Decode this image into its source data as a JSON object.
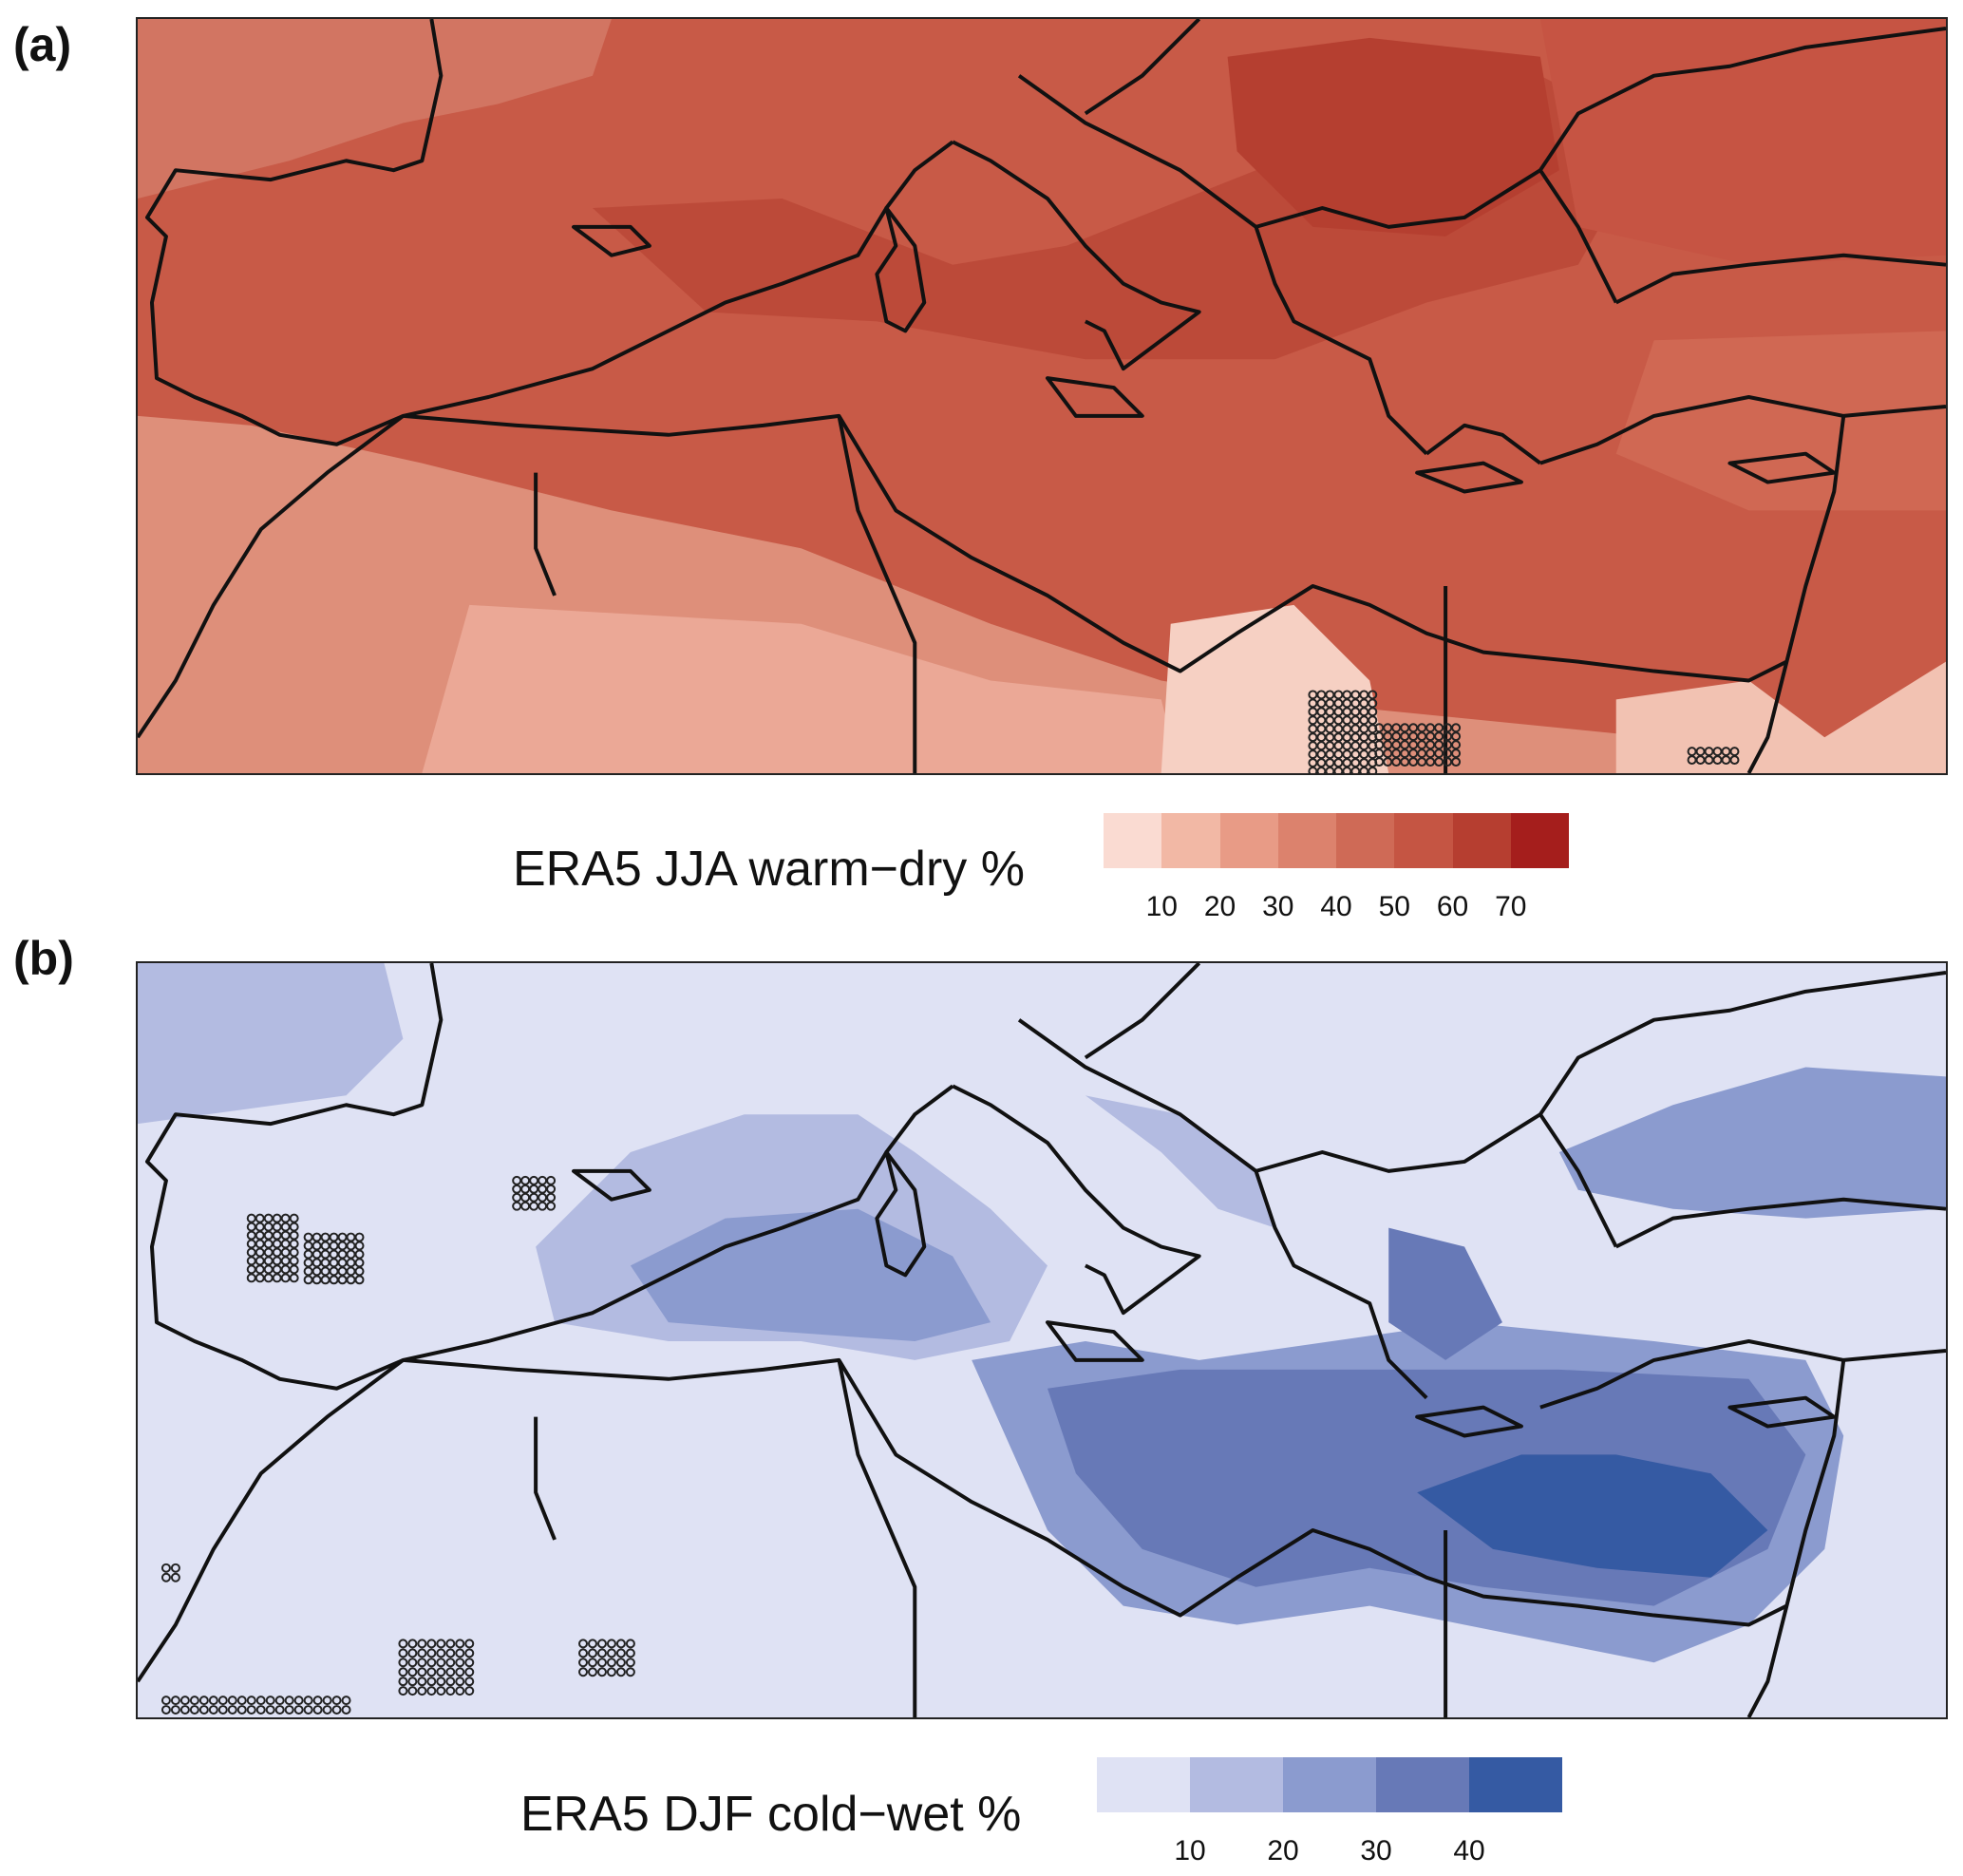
{
  "panels": [
    {
      "id": "a",
      "label": "(a)",
      "legend_title": "ERA5 JJA warm−dry %",
      "colors": [
        "#fadbd2",
        "#f2b8a5",
        "#e89b86",
        "#dc826d",
        "#cf6a56",
        "#c55543",
        "#b63e30",
        "#a51e1c"
      ],
      "ticks": [
        "10",
        "20",
        "30",
        "40",
        "50",
        "60",
        "70"
      ],
      "background_color": "#c85a47",
      "field_level": "50-60"
    },
    {
      "id": "b",
      "label": "(b)",
      "legend_title": "ERA5 DJF cold−wet %",
      "colors": [
        "#dfe2f4",
        "#b3bbe1",
        "#8b9bcf",
        "#6779b7",
        "#355aa3"
      ],
      "ticks": [
        "10",
        "20",
        "30",
        "40"
      ],
      "background_color": "#dfe2f4",
      "field_level": "0-10"
    }
  ]
}
